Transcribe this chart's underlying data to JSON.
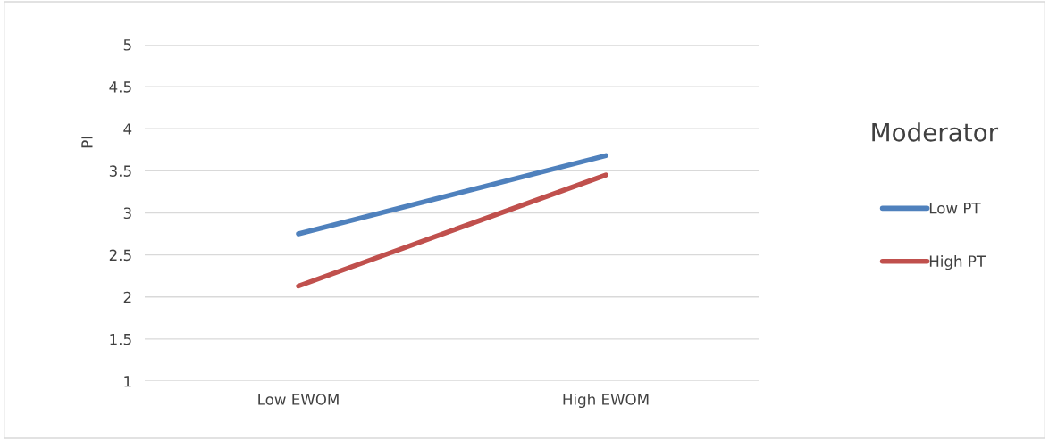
{
  "chart_data": {
    "type": "line",
    "ylabel": "PI",
    "legend_title": "Moderator",
    "categories": [
      "Low EWOM",
      "High EWOM"
    ],
    "series": [
      {
        "name": "Low PT",
        "color": "#4f81bd",
        "values": [
          2.75,
          3.68
        ]
      },
      {
        "name": "High PT",
        "color": "#c0504d",
        "values": [
          2.13,
          3.45
        ]
      }
    ],
    "ylim": [
      1,
      5
    ],
    "yticks": [
      1,
      1.5,
      2,
      2.5,
      3,
      3.5,
      4,
      4.5,
      5
    ],
    "grid": "y",
    "legend": "right",
    "marker": "none",
    "line_style": "solid"
  }
}
